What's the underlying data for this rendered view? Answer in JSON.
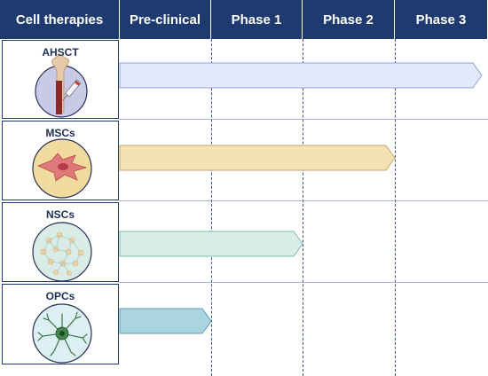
{
  "header": {
    "first_column": "Cell therapies",
    "stages": [
      "Pre-clinical",
      "Phase 1",
      "Phase 2",
      "Phase 3"
    ]
  },
  "therapies": [
    {
      "name": "AHSCT",
      "reached_stage": "Phase 3",
      "bar_color": "#e3e8fb",
      "bar_border": "#8fa0d8"
    },
    {
      "name": "MSCs",
      "reached_stage": "Phase 2",
      "bar_color": "#f3e2b3",
      "bar_border": "#c8a660"
    },
    {
      "name": "NSCs",
      "reached_stage": "Phase 1",
      "bar_color": "#d8efe9",
      "bar_border": "#7fb8a8"
    },
    {
      "name": "OPCs",
      "reached_stage": "Pre-clinical",
      "bar_color": "#a9d4e0",
      "bar_border": "#5a9fb4"
    }
  ],
  "colors": {
    "header_bg": "#1e3a6e",
    "header_text": "#ffffff",
    "grid_line": "#3b4f8a"
  },
  "icons": [
    "bone-syringe-icon",
    "mesenchymal-cell-icon",
    "neural-network-icon",
    "oligodendrocyte-icon"
  ]
}
